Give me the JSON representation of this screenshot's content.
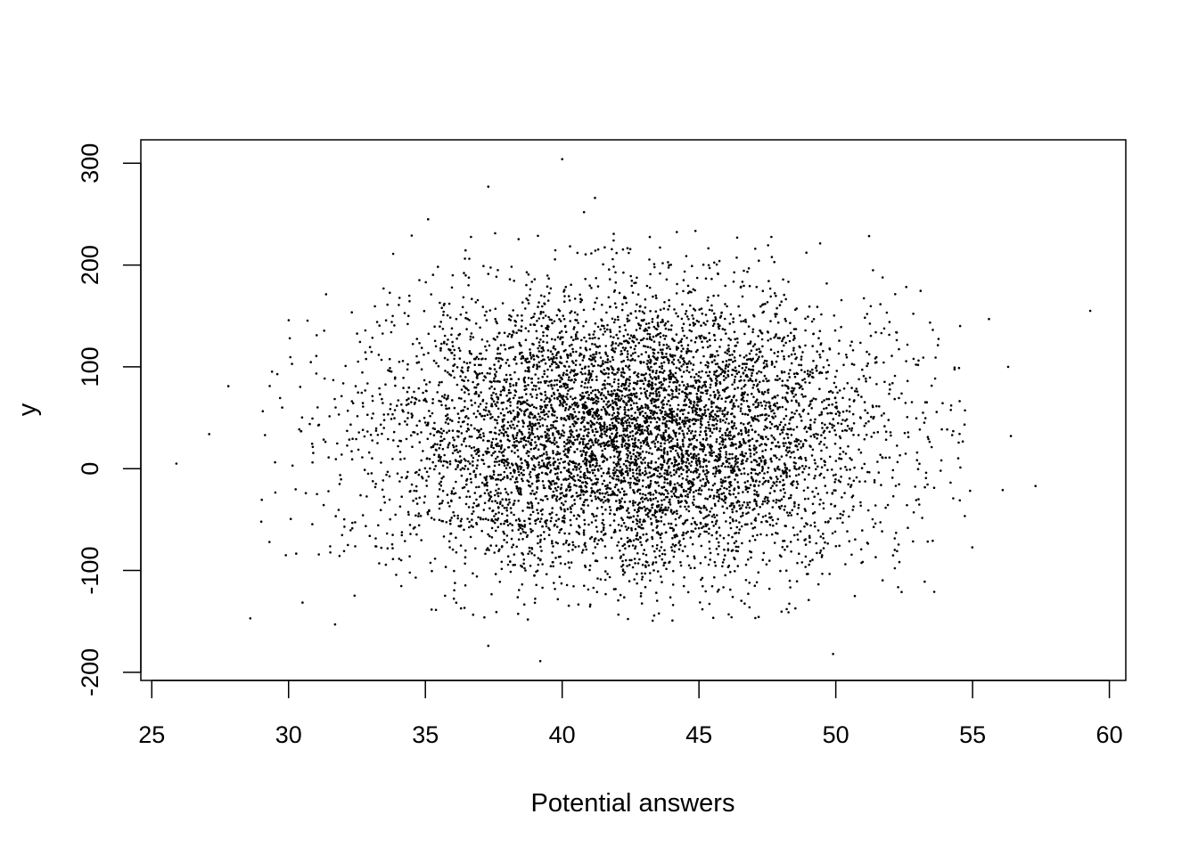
{
  "chart_data": {
    "type": "scatter",
    "title": "",
    "xlabel": "Potential answers",
    "ylabel": "y",
    "xlim": [
      24.6,
      60.6
    ],
    "ylim": [
      -208,
      323
    ],
    "x_ticks": [
      25,
      30,
      35,
      40,
      45,
      50,
      55,
      60
    ],
    "y_ticks": [
      -200,
      -100,
      0,
      100,
      200,
      300
    ],
    "x_tick_labels": [
      "25",
      "30",
      "35",
      "40",
      "45",
      "50",
      "55",
      "60"
    ],
    "y_tick_labels": [
      "-200",
      "-100",
      "0",
      "100",
      "200",
      "300"
    ],
    "grid": false,
    "legend": "none",
    "point_color": "#000000",
    "distribution_summary": {
      "x_center": 42.5,
      "x_spread_sd": 4.6,
      "y_center": 35,
      "y_spread_sd": 70,
      "n_points": 7000
    },
    "outliers": [
      {
        "x": 25.9,
        "y": 5
      },
      {
        "x": 27.1,
        "y": 34
      },
      {
        "x": 27.8,
        "y": 81
      },
      {
        "x": 28.6,
        "y": -147
      },
      {
        "x": 29.0,
        "y": -52
      },
      {
        "x": 29.3,
        "y": -72
      },
      {
        "x": 29.9,
        "y": -85
      },
      {
        "x": 31.7,
        "y": -153
      },
      {
        "x": 37.3,
        "y": 277
      },
      {
        "x": 37.3,
        "y": -174
      },
      {
        "x": 39.2,
        "y": -189
      },
      {
        "x": 40.0,
        "y": 304
      },
      {
        "x": 40.8,
        "y": 252
      },
      {
        "x": 41.2,
        "y": 266
      },
      {
        "x": 35.1,
        "y": 245
      },
      {
        "x": 34.5,
        "y": 229
      },
      {
        "x": 49.9,
        "y": -182
      },
      {
        "x": 53.6,
        "y": -121
      },
      {
        "x": 55.6,
        "y": 147
      },
      {
        "x": 56.3,
        "y": 100
      },
      {
        "x": 56.4,
        "y": 32
      },
      {
        "x": 56.1,
        "y": -21
      },
      {
        "x": 57.3,
        "y": -17
      },
      {
        "x": 59.3,
        "y": 155
      }
    ]
  }
}
